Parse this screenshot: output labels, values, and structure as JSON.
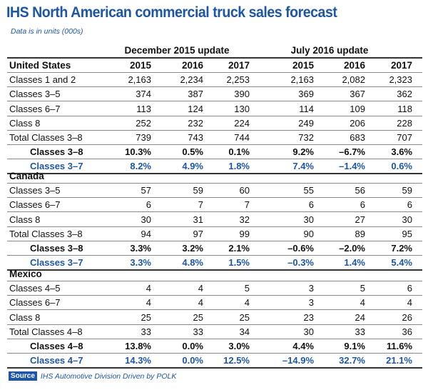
{
  "title": "IHS North American commercial truck sales forecast",
  "subtitle": "Data is in units (000s)",
  "groups": [
    "December 2015 update",
    "July 2016 update"
  ],
  "years": [
    "2015",
    "2016",
    "2017",
    "2015",
    "2016",
    "2017"
  ],
  "sections": [
    {
      "name": "United States",
      "rows": [
        {
          "label": "Classes 1 and 2",
          "style": "plain",
          "values": [
            "2,163",
            "2,234",
            "2,253",
            "2,163",
            "2,082",
            "2,323"
          ]
        },
        {
          "label": "Classes 3–5",
          "style": "plain",
          "values": [
            "374",
            "387",
            "390",
            "369",
            "367",
            "362"
          ]
        },
        {
          "label": "Classes 6–7",
          "style": "plain",
          "values": [
            "113",
            "124",
            "130",
            "114",
            "109",
            "118"
          ]
        },
        {
          "label": "Class 8",
          "style": "plain",
          "values": [
            "252",
            "232",
            "224",
            "249",
            "206",
            "228"
          ]
        },
        {
          "label": "Total Classes 3–8",
          "style": "plain",
          "values": [
            "739",
            "743",
            "744",
            "732",
            "683",
            "707"
          ]
        },
        {
          "label": "Classes 3–8",
          "style": "bold",
          "values": [
            "10.3%",
            "0.5%",
            "0.1%",
            "9.2%",
            "–6.7%",
            "3.6%"
          ]
        },
        {
          "label": "Classes 3–7",
          "style": "blue",
          "values": [
            "8.2%",
            "4.9%",
            "1.8%",
            "7.4%",
            "–1.4%",
            "0.6%"
          ]
        }
      ]
    },
    {
      "name": "Canada",
      "rows": [
        {
          "label": "Classes 3–5",
          "style": "plain",
          "values": [
            "57",
            "59",
            "60",
            "55",
            "56",
            "59"
          ]
        },
        {
          "label": "Classes 6–7",
          "style": "plain",
          "values": [
            "6",
            "7",
            "7",
            "6",
            "6",
            "6"
          ]
        },
        {
          "label": "Class 8",
          "style": "plain",
          "values": [
            "30",
            "31",
            "32",
            "30",
            "27",
            "30"
          ]
        },
        {
          "label": "Total Classes 3–8",
          "style": "plain",
          "values": [
            "94",
            "97",
            "99",
            "90",
            "89",
            "95"
          ]
        },
        {
          "label": "Classes 3–8",
          "style": "bold",
          "values": [
            "3.3%",
            "3.2%",
            "2.1%",
            "–0.6%",
            "–2.0%",
            "7.2%"
          ]
        },
        {
          "label": "Classes 3–7",
          "style": "blue",
          "values": [
            "3.3%",
            "4.8%",
            "1.5%",
            "–0.3%",
            "1.4%",
            "5.4%"
          ]
        }
      ]
    },
    {
      "name": "Mexico",
      "rows": [
        {
          "label": "Classes 4–5",
          "style": "plain",
          "values": [
            "4",
            "4",
            "5",
            "3",
            "5",
            "6"
          ]
        },
        {
          "label": "Classes 6–7",
          "style": "plain",
          "values": [
            "4",
            "4",
            "4",
            "3",
            "4",
            "4"
          ]
        },
        {
          "label": "Class 8",
          "style": "plain",
          "values": [
            "25",
            "25",
            "25",
            "23",
            "24",
            "26"
          ]
        },
        {
          "label": "Total Classes 4–8",
          "style": "plain",
          "values": [
            "33",
            "33",
            "34",
            "30",
            "33",
            "36"
          ]
        },
        {
          "label": "Classes 4–8",
          "style": "bold",
          "values": [
            "13.8%",
            "0.0%",
            "3.0%",
            "4.4%",
            "9.1%",
            "11.6%"
          ]
        },
        {
          "label": "Classes 4–7",
          "style": "blue",
          "values": [
            "14.3%",
            "0.0%",
            "12.5%",
            "–14.9%",
            "32.7%",
            "21.1%"
          ]
        }
      ]
    }
  ],
  "source": {
    "tag": "Source",
    "text": "IHS Automotive Division Driven by POLK"
  },
  "colors": {
    "accent": "#1d56a6"
  }
}
